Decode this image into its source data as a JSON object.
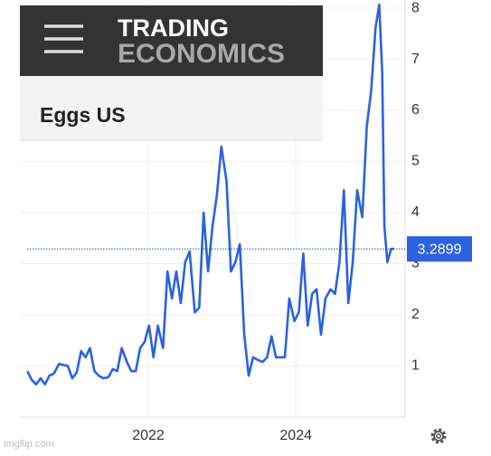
{
  "brand": {
    "line1": "TRADING",
    "line2": "ECONOMICS"
  },
  "watermark": "imgflip.com",
  "chart_data": {
    "type": "line",
    "title": "Eggs US",
    "x": [
      2020.36,
      2020.42,
      2020.48,
      2020.54,
      2020.6,
      2020.66,
      2020.72,
      2020.79,
      2020.85,
      2020.91,
      2020.97,
      2021.03,
      2021.09,
      2021.15,
      2021.21,
      2021.27,
      2021.33,
      2021.39,
      2021.46,
      2021.52,
      2021.58,
      2021.64,
      2021.71,
      2021.77,
      2021.83,
      2021.89,
      2021.95,
      2022.01,
      2022.07,
      2022.13,
      2022.2,
      2022.26,
      2022.32,
      2022.38,
      2022.44,
      2022.5,
      2022.56,
      2022.63,
      2022.69,
      2022.75,
      2022.81,
      2022.87,
      2022.93,
      2022.99,
      2023.06,
      2023.12,
      2023.18,
      2023.24,
      2023.3,
      2023.36,
      2023.42,
      2023.48,
      2023.55,
      2023.61,
      2023.67,
      2023.73,
      2023.79,
      2023.85,
      2023.91,
      2023.98,
      2024.04,
      2024.1,
      2024.16,
      2024.22,
      2024.28,
      2024.34,
      2024.4,
      2024.47,
      2024.53,
      2024.59,
      2024.65,
      2024.71,
      2024.77,
      2024.83,
      2024.9,
      2024.96,
      2025.02,
      2025.08,
      2025.13,
      2025.17,
      2025.2,
      2025.24,
      2025.29,
      2025.33
    ],
    "series": [
      {
        "color": "#2c62e0",
        "values": [
          0.9,
          0.73,
          0.64,
          0.76,
          0.64,
          0.81,
          0.85,
          1.04,
          1.02,
          1.0,
          0.76,
          0.87,
          1.29,
          1.17,
          1.35,
          0.9,
          0.81,
          0.76,
          0.78,
          0.94,
          0.9,
          1.35,
          1.08,
          0.9,
          0.9,
          1.35,
          1.47,
          1.79,
          1.17,
          1.79,
          1.35,
          2.85,
          2.32,
          2.85,
          2.23,
          3.03,
          3.24,
          2.05,
          2.14,
          4.0,
          2.85,
          3.73,
          4.35,
          5.29,
          4.62,
          2.85,
          3.03,
          3.38,
          1.61,
          0.81,
          1.17,
          1.12,
          1.08,
          1.17,
          1.58,
          1.17,
          1.17,
          1.17,
          2.32,
          1.88,
          2.05,
          3.2,
          1.79,
          2.41,
          2.5,
          1.61,
          2.32,
          2.5,
          2.41,
          3.03,
          4.44,
          2.23,
          3.03,
          4.44,
          3.91,
          5.68,
          6.39,
          7.63,
          8.07,
          6.74,
          3.73,
          3.03,
          3.29,
          3.2899
        ]
      }
    ],
    "current_value": 3.2899,
    "xlim": [
      2020.26,
      2025.48
    ],
    "xticks": [
      2022,
      2024
    ],
    "ylim": [
      0,
      8.16
    ],
    "yticks": [
      1,
      2,
      3,
      4,
      5,
      6,
      7,
      8
    ],
    "grid": true
  }
}
